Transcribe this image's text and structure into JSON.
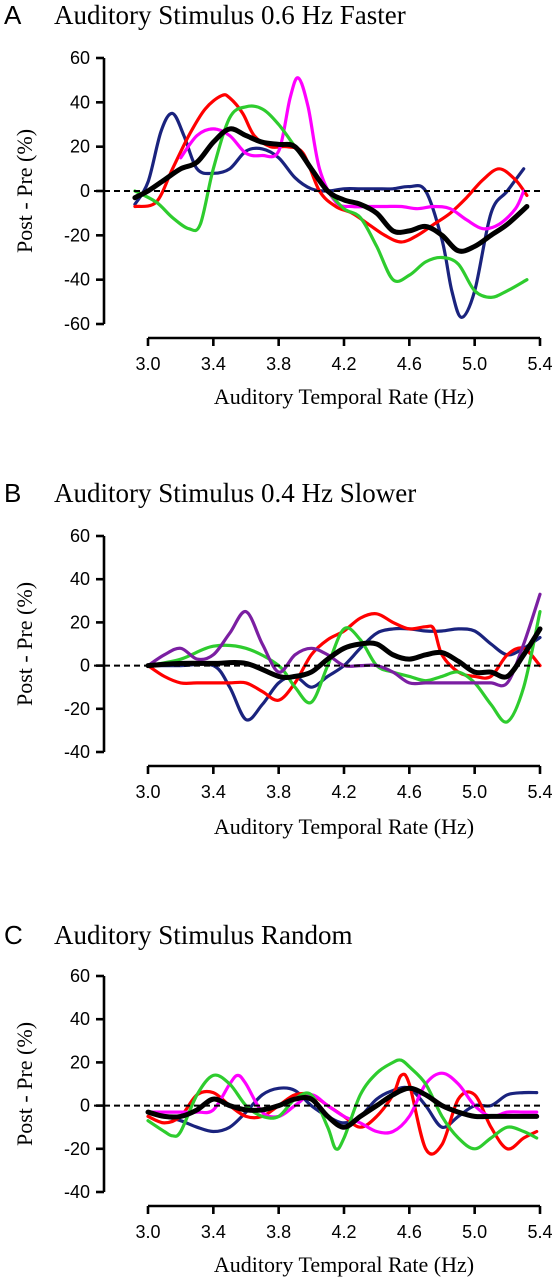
{
  "chart_data": [
    {
      "type": "line",
      "panel": "A",
      "title": "Auditory Stimulus 0.6 Hz Faster",
      "xlabel": "Auditory Temporal Rate (Hz)",
      "ylabel": "Post - Pre (%)",
      "xlim": [
        3.0,
        5.4
      ],
      "ylim": [
        -60,
        60
      ],
      "xticks": [
        "3.0",
        "3.4",
        "3.8",
        "4.2",
        "4.6",
        "5.0",
        "5.4"
      ],
      "yticks": [
        "60",
        "40",
        "20",
        "0",
        "-20",
        "-40",
        "-60"
      ],
      "zero_line": "dashed",
      "series": [
        {
          "color": "#1a237e",
          "x": [
            2.92,
            3.0,
            3.08,
            3.15,
            3.22,
            3.3,
            3.4,
            3.5,
            3.6,
            3.7,
            3.8,
            3.9,
            4.0,
            4.1,
            4.2,
            4.3,
            4.4,
            4.5,
            4.6,
            4.7,
            4.8,
            4.86,
            4.92,
            5.0,
            5.1,
            5.2,
            5.3
          ],
          "y": [
            -6,
            4,
            27,
            35,
            25,
            10,
            8,
            10,
            18,
            19,
            15,
            6,
            1,
            0,
            1,
            1,
            1,
            1,
            2,
            0,
            -22,
            -45,
            -57,
            -45,
            -10,
            0,
            10
          ]
        },
        {
          "color": "#ff0000",
          "x": [
            2.92,
            3.05,
            3.15,
            3.25,
            3.35,
            3.45,
            3.5,
            3.58,
            3.65,
            3.75,
            3.85,
            3.95,
            4.05,
            4.15,
            4.25,
            4.35,
            4.45,
            4.55,
            4.65,
            4.75,
            4.85,
            4.95,
            5.05,
            5.15,
            5.25,
            5.32
          ],
          "y": [
            -7,
            -5,
            10,
            25,
            37,
            43,
            42,
            35,
            25,
            20,
            20,
            17,
            0,
            -7,
            -10,
            -15,
            -20,
            -23,
            -20,
            -15,
            -10,
            -3,
            5,
            10,
            5,
            -2
          ]
        },
        {
          "color": "#ff00ff",
          "x": [
            3.2,
            3.3,
            3.4,
            3.5,
            3.6,
            3.7,
            3.8,
            3.87,
            3.92,
            3.98,
            4.05,
            4.15,
            4.25,
            4.35,
            4.45,
            4.55,
            4.65,
            4.75,
            4.85,
            4.95,
            5.05,
            5.15,
            5.25,
            5.3
          ],
          "y": [
            15,
            25,
            28,
            25,
            17,
            16,
            18,
            42,
            51,
            38,
            10,
            -5,
            -7,
            -7,
            -7,
            -7,
            -8,
            -7,
            -8,
            -13,
            -17,
            -15,
            -8,
            0
          ]
        },
        {
          "color": "#2ecc2e",
          "x": [
            2.92,
            3.05,
            3.15,
            3.25,
            3.32,
            3.4,
            3.5,
            3.6,
            3.7,
            3.8,
            3.9,
            4.0,
            4.1,
            4.2,
            4.3,
            4.4,
            4.5,
            4.6,
            4.7,
            4.8,
            4.9,
            5.0,
            5.1,
            5.2,
            5.32
          ],
          "y": [
            0,
            -5,
            -12,
            -17,
            -15,
            10,
            33,
            38,
            37,
            30,
            20,
            10,
            0,
            -8,
            -12,
            -25,
            -40,
            -38,
            -32,
            -30,
            -33,
            -45,
            -48,
            -45,
            -40
          ]
        },
        {
          "color": "#000000",
          "mean": true,
          "x": [
            2.92,
            3.0,
            3.1,
            3.2,
            3.3,
            3.4,
            3.5,
            3.6,
            3.7,
            3.8,
            3.9,
            4.0,
            4.1,
            4.2,
            4.3,
            4.4,
            4.5,
            4.6,
            4.7,
            4.8,
            4.9,
            5.0,
            5.1,
            5.2,
            5.32
          ],
          "y": [
            -3,
            0,
            5,
            10,
            13,
            22,
            28,
            25,
            22,
            21,
            20,
            10,
            0,
            -4,
            -6,
            -10,
            -18,
            -18,
            -16,
            -20,
            -27,
            -25,
            -20,
            -15,
            -7
          ]
        }
      ]
    },
    {
      "type": "line",
      "panel": "B",
      "title": "Auditory Stimulus 0.4 Hz Slower",
      "xlabel": "Auditory Temporal Rate (Hz)",
      "ylabel": "Post - Pre (%)",
      "xlim": [
        3.0,
        5.4
      ],
      "ylim": [
        -40,
        60
      ],
      "xticks": [
        "3.0",
        "3.4",
        "3.8",
        "4.2",
        "4.6",
        "5.0",
        "5.4"
      ],
      "yticks": [
        "60",
        "40",
        "20",
        "0",
        "-20",
        "-40"
      ],
      "zero_line": "dashed",
      "series": [
        {
          "color": "#1a237e",
          "x": [
            3.0,
            3.2,
            3.4,
            3.5,
            3.6,
            3.7,
            3.8,
            3.9,
            4.0,
            4.1,
            4.2,
            4.3,
            4.4,
            4.5,
            4.6,
            4.7,
            4.8,
            4.9,
            5.0,
            5.1,
            5.2,
            5.3,
            5.4
          ],
          "y": [
            0,
            0,
            0,
            -10,
            -25,
            -18,
            -8,
            -5,
            -10,
            -5,
            0,
            8,
            15,
            17,
            17,
            16,
            16,
            17,
            16,
            10,
            5,
            8,
            13
          ]
        },
        {
          "color": "#ff0000",
          "x": [
            3.0,
            3.1,
            3.2,
            3.3,
            3.4,
            3.5,
            3.6,
            3.7,
            3.8,
            3.9,
            4.0,
            4.1,
            4.2,
            4.3,
            4.4,
            4.5,
            4.6,
            4.7,
            4.75,
            4.8,
            4.9,
            5.0,
            5.1,
            5.2,
            5.3,
            5.4
          ],
          "y": [
            0,
            -5,
            -8,
            -8,
            -8,
            -8,
            -8,
            -12,
            -16,
            -8,
            5,
            12,
            16,
            22,
            24,
            20,
            17,
            18,
            17,
            5,
            -3,
            -5,
            -5,
            5,
            8,
            0
          ]
        },
        {
          "color": "#2ecc2e",
          "x": [
            3.0,
            3.2,
            3.4,
            3.6,
            3.8,
            3.9,
            4.0,
            4.1,
            4.2,
            4.3,
            4.4,
            4.5,
            4.6,
            4.7,
            4.8,
            4.9,
            5.0,
            5.1,
            5.2,
            5.3,
            5.4
          ],
          "y": [
            0,
            3,
            9,
            8,
            0,
            -10,
            -17,
            0,
            17,
            12,
            0,
            -3,
            -5,
            -7,
            -5,
            -3,
            -8,
            -18,
            -26,
            -10,
            25
          ]
        },
        {
          "color": "#7b1fa2",
          "x": [
            3.0,
            3.1,
            3.2,
            3.3,
            3.4,
            3.5,
            3.6,
            3.7,
            3.8,
            3.9,
            4.0,
            4.1,
            4.2,
            4.3,
            4.4,
            4.5,
            4.6,
            4.7,
            4.8,
            4.9,
            5.0,
            5.1,
            5.2,
            5.3,
            5.4
          ],
          "y": [
            0,
            5,
            8,
            3,
            5,
            15,
            25,
            10,
            -3,
            5,
            8,
            5,
            0,
            0,
            0,
            -3,
            -8,
            -8,
            -8,
            -8,
            -8,
            -8,
            -8,
            10,
            33
          ]
        },
        {
          "color": "#000000",
          "mean": true,
          "x": [
            3.0,
            3.2,
            3.4,
            3.6,
            3.8,
            3.9,
            4.0,
            4.1,
            4.2,
            4.3,
            4.4,
            4.5,
            4.6,
            4.7,
            4.8,
            4.9,
            5.0,
            5.1,
            5.2,
            5.3,
            5.4
          ],
          "y": [
            0,
            1,
            1,
            1,
            -5,
            -5,
            -3,
            3,
            8,
            10,
            10,
            5,
            3,
            5,
            6,
            2,
            -3,
            -3,
            -5,
            5,
            17
          ]
        }
      ]
    },
    {
      "type": "line",
      "panel": "C",
      "title": "Auditory Stimulus Random",
      "xlabel": "Auditory Temporal Rate (Hz)",
      "ylabel": "Post - Pre (%)",
      "xlim": [
        3.0,
        5.4
      ],
      "ylim": [
        -40,
        60
      ],
      "xticks": [
        "3.0",
        "3.4",
        "3.8",
        "4.2",
        "4.6",
        "5.0",
        "5.4"
      ],
      "yticks": [
        "60",
        "40",
        "20",
        "0",
        "-20",
        "-40"
      ],
      "zero_line": "dashed",
      "series": [
        {
          "color": "#1a237e",
          "x": [
            3.0,
            3.1,
            3.2,
            3.3,
            3.4,
            3.5,
            3.6,
            3.7,
            3.8,
            3.9,
            4.0,
            4.1,
            4.2,
            4.3,
            4.4,
            4.5,
            4.6,
            4.7,
            4.8,
            4.9,
            5.0,
            5.1,
            5.2,
            5.3,
            5.38
          ],
          "y": [
            -3,
            -5,
            -7,
            -10,
            -12,
            -10,
            -3,
            5,
            8,
            7,
            0,
            -5,
            -8,
            -5,
            3,
            7,
            8,
            0,
            -10,
            -5,
            0,
            0,
            5,
            6,
            6
          ]
        },
        {
          "color": "#ff0000",
          "x": [
            3.0,
            3.1,
            3.2,
            3.3,
            3.4,
            3.5,
            3.6,
            3.7,
            3.8,
            3.9,
            4.0,
            4.1,
            4.2,
            4.3,
            4.4,
            4.5,
            4.55,
            4.6,
            4.7,
            4.8,
            4.9,
            5.0,
            5.1,
            5.2,
            5.3,
            5.38
          ],
          "y": [
            -5,
            -8,
            -5,
            5,
            6,
            0,
            -5,
            -5,
            0,
            5,
            5,
            0,
            -5,
            -10,
            -5,
            5,
            14,
            10,
            -20,
            -18,
            3,
            5,
            -10,
            -20,
            -15,
            -12
          ]
        },
        {
          "color": "#ff00ff",
          "x": [
            3.0,
            3.1,
            3.2,
            3.3,
            3.4,
            3.5,
            3.55,
            3.6,
            3.7,
            3.8,
            3.9,
            4.0,
            4.1,
            4.2,
            4.3,
            4.4,
            4.5,
            4.6,
            4.7,
            4.8,
            4.9,
            5.0,
            5.1,
            5.2,
            5.3,
            5.38
          ],
          "y": [
            -3,
            -3,
            -3,
            -3,
            -2,
            10,
            14,
            10,
            -3,
            -5,
            0,
            5,
            0,
            -5,
            -8,
            -12,
            -12,
            -5,
            10,
            15,
            10,
            0,
            -5,
            -3,
            -3,
            -3
          ]
        },
        {
          "color": "#2ecc2e",
          "x": [
            3.0,
            3.1,
            3.15,
            3.2,
            3.3,
            3.4,
            3.5,
            3.6,
            3.7,
            3.8,
            3.9,
            4.0,
            4.1,
            4.15,
            4.2,
            4.3,
            4.4,
            4.5,
            4.55,
            4.6,
            4.7,
            4.8,
            4.9,
            5.0,
            5.1,
            5.2,
            5.3,
            5.38
          ],
          "y": [
            -7,
            -12,
            -14,
            -12,
            5,
            14,
            10,
            0,
            -5,
            -5,
            3,
            5,
            -10,
            -20,
            -15,
            5,
            15,
            20,
            21,
            18,
            10,
            -5,
            -15,
            -20,
            -15,
            -10,
            -12,
            -15
          ]
        },
        {
          "color": "#000000",
          "mean": true,
          "x": [
            3.0,
            3.1,
            3.2,
            3.3,
            3.4,
            3.5,
            3.6,
            3.7,
            3.8,
            3.9,
            4.0,
            4.1,
            4.2,
            4.3,
            4.4,
            4.5,
            4.6,
            4.7,
            4.8,
            4.9,
            5.0,
            5.1,
            5.2,
            5.3,
            5.38
          ],
          "y": [
            -3,
            -5,
            -5,
            -2,
            3,
            0,
            -2,
            -2,
            0,
            3,
            3,
            -5,
            -10,
            -5,
            0,
            5,
            8,
            5,
            0,
            -3,
            -5,
            -5,
            -5,
            -5,
            -5
          ]
        }
      ]
    }
  ]
}
